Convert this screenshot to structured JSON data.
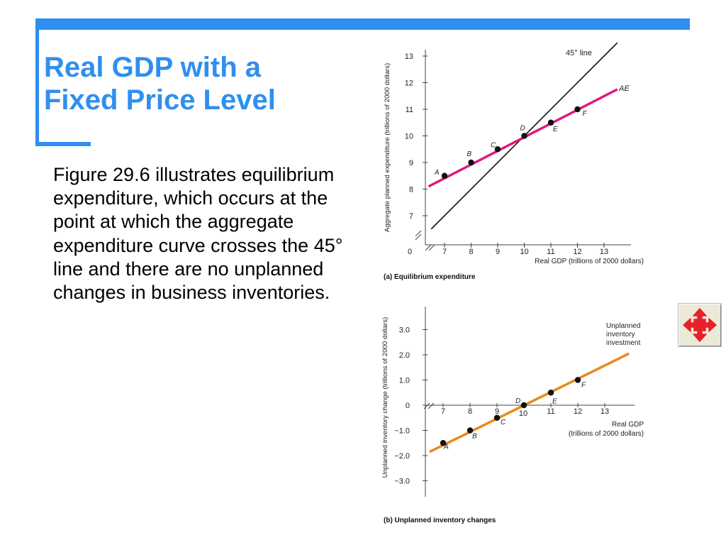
{
  "slide": {
    "title_lines": [
      "Real GDP with a",
      "Fixed Price Level"
    ],
    "body": "Figure 29.6 illustrates equilibrium expenditure, which occurs at the point at which the aggregate expenditure curve crosses the 45° line and there are no unplanned changes in business inventories.",
    "colors": {
      "accent": "#2f8ff0",
      "ae_line": "#e0197d",
      "inventory_line": "#e88a1a"
    }
  },
  "nav_button": {
    "icon": "four-way-arrow-icon",
    "color": "#e8202a"
  },
  "chart_data": [
    {
      "type": "line",
      "caption": "(a) Equilibrium expenditure",
      "xlabel": "Real GDP (trillions of 2000 dollars)",
      "ylabel": "Aggregate planned expenditure (trillions of 2000 dollars)",
      "x_ticks": [
        "0",
        "7",
        "8",
        "9",
        "10",
        "11",
        "12",
        "13"
      ],
      "y_ticks": [
        "7",
        "8",
        "9",
        "10",
        "11",
        "12",
        "13"
      ],
      "xlim": [
        6.2,
        13.8
      ],
      "ylim": [
        6.5,
        13.3
      ],
      "series": [
        {
          "name": "45° line",
          "x": [
            6.5,
            13.5
          ],
          "y": [
            6.5,
            13.5
          ]
        },
        {
          "name": "AE",
          "x": [
            6.4,
            13.5
          ],
          "y": [
            8.1,
            11.75
          ]
        }
      ],
      "points": [
        {
          "label": "A",
          "x": 7,
          "y": 8.5
        },
        {
          "label": "B",
          "x": 8,
          "y": 9
        },
        {
          "label": "C",
          "x": 9,
          "y": 9.5
        },
        {
          "label": "D",
          "x": 10,
          "y": 10
        },
        {
          "label": "E",
          "x": 11,
          "y": 10.5
        },
        {
          "label": "F",
          "x": 12,
          "y": 11
        }
      ]
    },
    {
      "type": "line",
      "caption": "(b) Unplanned inventory changes",
      "xlabel_lines": [
        "Real GDP",
        "(trillions of 2000 dollars)"
      ],
      "ylabel": "Unplanned inventory change (trillions of 2000 dollars)",
      "x_ticks": [
        "7",
        "8",
        "9",
        "10",
        "11",
        "12",
        "13"
      ],
      "y_ticks": [
        "3.0",
        "2.0",
        "1.0",
        "0",
        "−1.0",
        "−2.0",
        "−3.0"
      ],
      "xlim": [
        6.2,
        14
      ],
      "ylim": [
        -3.3,
        3.5
      ],
      "series": [
        {
          "name_lines": [
            "Unplanned",
            "inventory",
            "investment"
          ],
          "x": [
            6.5,
            13.9
          ],
          "y": [
            -1.85,
            2.05
          ]
        }
      ],
      "points": [
        {
          "label": "A",
          "x": 7,
          "y": -1.5
        },
        {
          "label": "B",
          "x": 8,
          "y": -1
        },
        {
          "label": "C",
          "x": 9,
          "y": -0.5
        },
        {
          "label": "D",
          "x": 10,
          "y": 0
        },
        {
          "label": "E",
          "x": 11,
          "y": 0.5
        },
        {
          "label": "F",
          "x": 12,
          "y": 1
        }
      ]
    }
  ]
}
